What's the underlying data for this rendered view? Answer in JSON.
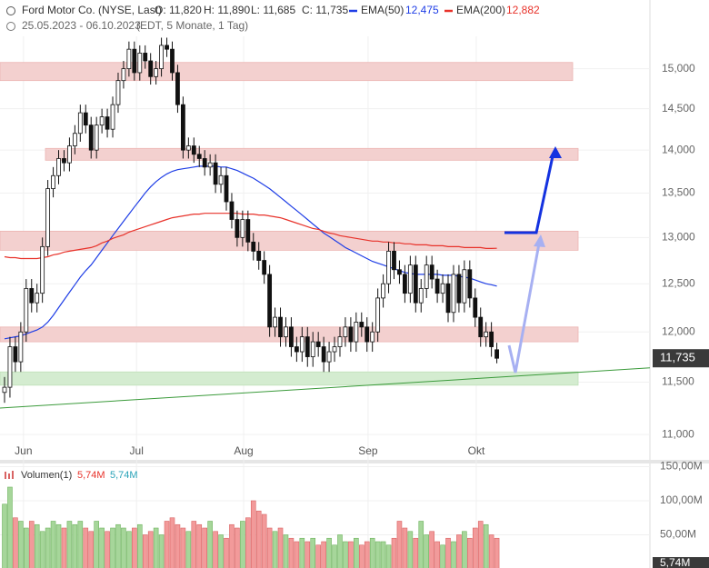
{
  "header": {
    "name": "Ford Motor Co. (NYSE, Last)",
    "open": "O: 11,820",
    "high": "H: 11,890",
    "low": "L: 11,685",
    "close": "C: 11,735",
    "range": "25.05.2023 - 06.10.2023",
    "info": "(EDT, 5 Monate, 1 Tag)",
    "ema50_label": "EMA(50)",
    "ema50_value": "12,475",
    "ema200_label": "EMA(200)",
    "ema200_value": "12,882",
    "last_price": "11,735"
  },
  "chart_data": {
    "type": "candlestick",
    "log_scale": true,
    "grid": true,
    "xlim": [
      -0.84,
      119.3
    ],
    "xticks": [
      {
        "value": 3.5,
        "label": "Jun"
      },
      {
        "value": 24.4,
        "label": "Jul"
      },
      {
        "value": 44.2,
        "label": "Aug"
      },
      {
        "value": 67.2,
        "label": "Sep"
      },
      {
        "value": 87.2,
        "label": "Okt"
      }
    ],
    "ylim": [
      10.9,
      15.9
    ],
    "yticks": [
      {
        "value": 11,
        "label": "11,000"
      },
      {
        "value": 11.5,
        "label": "11,500"
      },
      {
        "value": 12,
        "label": "12,000"
      },
      {
        "value": 12.5,
        "label": "12,500"
      },
      {
        "value": 13,
        "label": "13,000"
      },
      {
        "value": 13.5,
        "label": "13,500"
      },
      {
        "value": 14,
        "label": "14,000"
      },
      {
        "value": 14.5,
        "label": "14,500"
      },
      {
        "value": 15,
        "label": "15,000"
      }
    ],
    "open": [
      11.4,
      11.45,
      11.85,
      11.7,
      12.0,
      12.45,
      12.3,
      12.4,
      12.9,
      13.55,
      13.7,
      13.9,
      13.85,
      14.05,
      14.2,
      14.45,
      14.3,
      14.0,
      14.3,
      14.4,
      14.25,
      14.55,
      14.85,
      15.0,
      15.25,
      14.95,
      15.2,
      15.1,
      14.9,
      15.0,
      15.3,
      15.25,
      14.95,
      14.55,
      14.0,
      14.05,
      13.95,
      13.9,
      13.8,
      13.85,
      13.6,
      13.7,
      13.4,
      13.2,
      13.0,
      13.2,
      12.95,
      12.85,
      12.75,
      12.6,
      12.05,
      12.15,
      11.95,
      12.05,
      11.85,
      11.8,
      11.95,
      11.75,
      11.9,
      11.85,
      11.7,
      11.8,
      11.85,
      11.95,
      12.05,
      11.9,
      12.1,
      12.05,
      11.9,
      12.0,
      12.35,
      12.5,
      12.85,
      12.65,
      12.6,
      12.4,
      12.7,
      12.3,
      12.45,
      12.7,
      12.55,
      12.4,
      12.5,
      12.2,
      12.6,
      12.3,
      12.65,
      12.35,
      12.15,
      11.95,
      12.0,
      11.82
    ],
    "high": [
      11.55,
      11.95,
      11.95,
      12.1,
      12.55,
      12.55,
      12.5,
      13.0,
      13.65,
      13.8,
      14.0,
      14.0,
      14.15,
      14.3,
      14.55,
      14.55,
      14.4,
      14.4,
      14.5,
      14.5,
      14.65,
      14.95,
      15.1,
      15.35,
      15.35,
      15.3,
      15.3,
      15.2,
      15.1,
      15.4,
      15.4,
      15.35,
      15.05,
      14.65,
      14.15,
      14.15,
      14.05,
      14.0,
      13.95,
      13.95,
      13.8,
      13.8,
      13.5,
      13.3,
      13.3,
      13.3,
      13.05,
      12.95,
      12.85,
      12.7,
      12.25,
      12.25,
      12.15,
      12.15,
      11.95,
      12.05,
      12.05,
      12.0,
      12.0,
      11.95,
      11.9,
      11.95,
      12.05,
      12.15,
      12.15,
      12.2,
      12.2,
      12.15,
      12.1,
      12.45,
      12.6,
      12.95,
      12.95,
      12.75,
      12.7,
      12.8,
      12.8,
      12.55,
      12.8,
      12.8,
      12.65,
      12.6,
      12.6,
      12.7,
      12.7,
      12.75,
      12.75,
      12.45,
      12.25,
      12.1,
      12.1,
      11.89
    ],
    "low": [
      11.3,
      11.35,
      11.6,
      11.6,
      11.9,
      12.2,
      12.2,
      12.3,
      12.8,
      13.45,
      13.6,
      13.75,
      13.75,
      13.95,
      14.1,
      14.2,
      13.9,
      13.9,
      14.2,
      14.15,
      14.15,
      14.45,
      14.75,
      14.9,
      14.85,
      14.85,
      15.0,
      14.8,
      14.8,
      14.9,
      15.15,
      14.85,
      14.45,
      13.9,
      13.9,
      13.85,
      13.8,
      13.7,
      13.7,
      13.5,
      13.5,
      13.3,
      13.1,
      12.9,
      12.9,
      12.85,
      12.75,
      12.65,
      12.5,
      11.95,
      11.95,
      11.85,
      11.85,
      11.75,
      11.7,
      11.7,
      11.65,
      11.65,
      11.75,
      11.6,
      11.6,
      11.7,
      11.75,
      11.85,
      11.8,
      11.8,
      11.95,
      11.8,
      11.8,
      11.9,
      12.25,
      12.4,
      12.55,
      12.5,
      12.3,
      12.3,
      12.2,
      12.2,
      12.35,
      12.45,
      12.3,
      12.3,
      12.1,
      12.1,
      12.2,
      12.2,
      12.25,
      12.05,
      11.85,
      11.85,
      11.75,
      11.685
    ],
    "close": [
      11.45,
      11.85,
      11.7,
      12.0,
      12.45,
      12.3,
      12.4,
      12.9,
      13.55,
      13.7,
      13.9,
      13.85,
      14.05,
      14.2,
      14.45,
      14.3,
      14.0,
      14.3,
      14.4,
      14.25,
      14.55,
      14.85,
      15.0,
      15.25,
      14.95,
      15.2,
      15.1,
      14.9,
      15.0,
      15.3,
      15.25,
      14.95,
      14.55,
      14.0,
      14.05,
      13.95,
      13.9,
      13.8,
      13.85,
      13.6,
      13.7,
      13.4,
      13.2,
      13.0,
      13.2,
      12.95,
      12.85,
      12.75,
      12.6,
      12.05,
      12.15,
      11.95,
      12.05,
      11.85,
      11.8,
      11.95,
      11.75,
      11.9,
      11.85,
      11.7,
      11.8,
      11.85,
      11.95,
      12.05,
      11.9,
      12.1,
      12.05,
      11.9,
      12.0,
      12.35,
      12.5,
      12.85,
      12.65,
      12.6,
      12.4,
      12.7,
      12.3,
      12.45,
      12.7,
      12.55,
      12.4,
      12.5,
      12.2,
      12.6,
      12.3,
      12.65,
      12.35,
      12.15,
      11.95,
      12.0,
      11.85,
      11.735
    ],
    "series": [
      {
        "name": "EMA(50)",
        "color": "#1f3ee6",
        "values": [
          11.93,
          11.94,
          11.95,
          11.96,
          11.98,
          12.0,
          12.02,
          12.05,
          12.1,
          12.17,
          12.25,
          12.33,
          12.41,
          12.49,
          12.57,
          12.64,
          12.7,
          12.78,
          12.86,
          12.94,
          13.02,
          13.1,
          13.18,
          13.26,
          13.34,
          13.42,
          13.5,
          13.57,
          13.63,
          13.68,
          13.72,
          13.75,
          13.77,
          13.78,
          13.79,
          13.8,
          13.81,
          13.81,
          13.81,
          13.81,
          13.8,
          13.8,
          13.78,
          13.76,
          13.73,
          13.7,
          13.67,
          13.63,
          13.59,
          13.55,
          13.5,
          13.45,
          13.4,
          13.35,
          13.3,
          13.25,
          13.2,
          13.15,
          13.1,
          13.05,
          13.01,
          12.97,
          12.93,
          12.89,
          12.86,
          12.83,
          12.8,
          12.77,
          12.74,
          12.72,
          12.7,
          12.68,
          12.66,
          12.64,
          12.62,
          12.61,
          12.6,
          12.6,
          12.6,
          12.6,
          12.6,
          12.59,
          12.59,
          12.59,
          12.58,
          12.57,
          12.56,
          12.54,
          12.52,
          12.5,
          12.49,
          12.475
        ]
      },
      {
        "name": "EMA(200)",
        "color": "#e8322a",
        "values": [
          12.79,
          12.78,
          12.78,
          12.77,
          12.77,
          12.77,
          12.77,
          12.78,
          12.79,
          12.81,
          12.82,
          12.84,
          12.85,
          12.86,
          12.87,
          12.88,
          12.89,
          12.91,
          12.94,
          12.96,
          12.99,
          13.01,
          13.03,
          13.06,
          13.08,
          13.1,
          13.12,
          13.14,
          13.16,
          13.18,
          13.2,
          13.22,
          13.23,
          13.24,
          13.25,
          13.26,
          13.26,
          13.27,
          13.27,
          13.27,
          13.27,
          13.27,
          13.27,
          13.27,
          13.26,
          13.26,
          13.26,
          13.25,
          13.25,
          13.24,
          13.23,
          13.22,
          13.2,
          13.18,
          13.16,
          13.14,
          13.12,
          13.1,
          13.09,
          13.07,
          13.05,
          13.04,
          13.02,
          13.01,
          13.0,
          12.99,
          12.98,
          12.97,
          12.96,
          12.96,
          12.95,
          12.95,
          12.94,
          12.94,
          12.93,
          12.93,
          12.92,
          12.92,
          12.92,
          12.91,
          12.91,
          12.91,
          12.9,
          12.9,
          12.9,
          12.89,
          12.89,
          12.89,
          12.89,
          12.88,
          12.88,
          12.882
        ]
      }
    ],
    "zones": [
      {
        "range": [
          14.85,
          15.08
        ],
        "color": "#f3d0cf"
      },
      {
        "range": [
          13.88,
          14.02
        ],
        "color": "#f3d0cf"
      },
      {
        "range": [
          12.86,
          13.07
        ],
        "color": "#f3d0cf"
      },
      {
        "range": [
          11.9,
          12.05
        ],
        "color": "#f3d0cf"
      },
      {
        "range": [
          11.47,
          11.6
        ],
        "color": "#d4ecd0"
      }
    ],
    "trendline": {
      "values": [
        11.25,
        11.64
      ],
      "color": "#3a9a3a"
    },
    "volume": {
      "label": "Volumen(1)",
      "value1": "5,74M",
      "value2": "5,74M",
      "badge": "5,74M",
      "ylim": [
        0,
        152
      ],
      "yticks": [
        {
          "value": 50,
          "label": "50,00M"
        },
        {
          "value": 100,
          "label": "100,00M"
        },
        {
          "value": 150,
          "label": "150,00M"
        }
      ],
      "up_color": "#a6d69a",
      "down_color": "#f29a9a",
      "values": [
        95,
        120,
        75,
        70,
        60,
        70,
        65,
        55,
        60,
        70,
        65,
        60,
        70,
        65,
        70,
        60,
        55,
        70,
        60,
        55,
        60,
        65,
        60,
        55,
        60,
        65,
        50,
        55,
        60,
        50,
        70,
        75,
        65,
        60,
        55,
        70,
        65,
        60,
        70,
        55,
        50,
        45,
        65,
        60,
        70,
        75,
        100,
        85,
        80,
        60,
        55,
        60,
        50,
        45,
        40,
        45,
        40,
        45,
        35,
        40,
        45,
        35,
        50,
        40,
        40,
        45,
        35,
        40,
        45,
        40,
        40,
        35,
        45,
        70,
        60,
        55,
        45,
        70,
        50,
        55,
        40,
        35,
        45,
        40,
        50,
        55,
        45,
        60,
        70,
        65,
        50,
        45
      ]
    }
  }
}
